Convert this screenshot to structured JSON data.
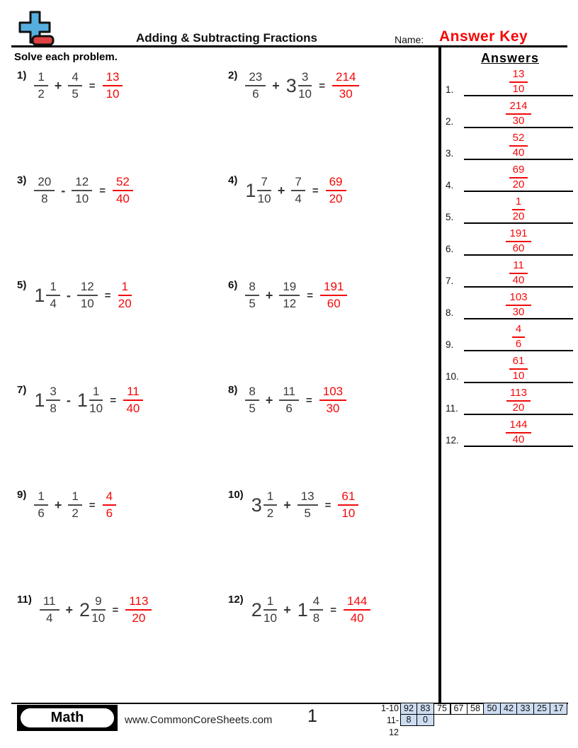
{
  "header": {
    "title": "Adding & Subtracting Fractions",
    "name_label": "Name:",
    "name_value": "Answer Key",
    "instructions": "Solve each problem.",
    "answers_heading": "Answers",
    "logo_icon": "plus-minus-icon"
  },
  "colors": {
    "answer_red": "#f40808",
    "shaded_cell_blue": "#cddcf1",
    "logo_blue": "#56aede",
    "logo_red": "#e04141"
  },
  "problems": [
    {
      "label": "1)",
      "a_whole": "",
      "a_num": "1",
      "a_den": "2",
      "op": "+",
      "b_whole": "",
      "b_num": "4",
      "b_den": "5",
      "ans_num": "13",
      "ans_den": "10"
    },
    {
      "label": "2)",
      "a_whole": "",
      "a_num": "23",
      "a_den": "6",
      "op": "+",
      "b_whole": "3",
      "b_num": "3",
      "b_den": "10",
      "ans_num": "214",
      "ans_den": "30"
    },
    {
      "label": "3)",
      "a_whole": "",
      "a_num": "20",
      "a_den": "8",
      "op": "-",
      "b_whole": "",
      "b_num": "12",
      "b_den": "10",
      "ans_num": "52",
      "ans_den": "40"
    },
    {
      "label": "4)",
      "a_whole": "1",
      "a_num": "7",
      "a_den": "10",
      "op": "+",
      "b_whole": "",
      "b_num": "7",
      "b_den": "4",
      "ans_num": "69",
      "ans_den": "20"
    },
    {
      "label": "5)",
      "a_whole": "1",
      "a_num": "1",
      "a_den": "4",
      "op": "-",
      "b_whole": "",
      "b_num": "12",
      "b_den": "10",
      "ans_num": "1",
      "ans_den": "20"
    },
    {
      "label": "6)",
      "a_whole": "",
      "a_num": "8",
      "a_den": "5",
      "op": "+",
      "b_whole": "",
      "b_num": "19",
      "b_den": "12",
      "ans_num": "191",
      "ans_den": "60"
    },
    {
      "label": "7)",
      "a_whole": "1",
      "a_num": "3",
      "a_den": "8",
      "op": "-",
      "b_whole": "1",
      "b_num": "1",
      "b_den": "10",
      "ans_num": "11",
      "ans_den": "40"
    },
    {
      "label": "8)",
      "a_whole": "",
      "a_num": "8",
      "a_den": "5",
      "op": "+",
      "b_whole": "",
      "b_num": "11",
      "b_den": "6",
      "ans_num": "103",
      "ans_den": "30"
    },
    {
      "label": "9)",
      "a_whole": "",
      "a_num": "1",
      "a_den": "6",
      "op": "+",
      "b_whole": "",
      "b_num": "1",
      "b_den": "2",
      "ans_num": "4",
      "ans_den": "6"
    },
    {
      "label": "10)",
      "a_whole": "3",
      "a_num": "1",
      "a_den": "2",
      "op": "+",
      "b_whole": "",
      "b_num": "13",
      "b_den": "5",
      "ans_num": "61",
      "ans_den": "10"
    },
    {
      "label": "11)",
      "a_whole": "",
      "a_num": "11",
      "a_den": "4",
      "op": "+",
      "b_whole": "2",
      "b_num": "9",
      "b_den": "10",
      "ans_num": "113",
      "ans_den": "20"
    },
    {
      "label": "12)",
      "a_whole": "2",
      "a_num": "1",
      "a_den": "10",
      "op": "+",
      "b_whole": "1",
      "b_num": "4",
      "b_den": "8",
      "ans_num": "144",
      "ans_den": "40"
    }
  ],
  "answers": [
    {
      "label": "1.",
      "num": "13",
      "den": "10"
    },
    {
      "label": "2.",
      "num": "214",
      "den": "30"
    },
    {
      "label": "3.",
      "num": "52",
      "den": "40"
    },
    {
      "label": "4.",
      "num": "69",
      "den": "20"
    },
    {
      "label": "5.",
      "num": "1",
      "den": "20"
    },
    {
      "label": "6.",
      "num": "191",
      "den": "60"
    },
    {
      "label": "7.",
      "num": "11",
      "den": "40"
    },
    {
      "label": "8.",
      "num": "103",
      "den": "30"
    },
    {
      "label": "9.",
      "num": "4",
      "den": "6"
    },
    {
      "label": "10.",
      "num": "61",
      "den": "10"
    },
    {
      "label": "11.",
      "num": "113",
      "den": "20"
    },
    {
      "label": "12.",
      "num": "144",
      "den": "40"
    }
  ],
  "footer": {
    "brand": "Math",
    "website": "www.CommonCoreSheets.com",
    "page_number": "1",
    "score_table": {
      "rows": [
        {
          "label": "1-10",
          "cells": [
            {
              "v": "92",
              "shaded": true
            },
            {
              "v": "83",
              "shaded": true
            },
            {
              "v": "75",
              "shaded": false
            },
            {
              "v": "67",
              "shaded": false
            },
            {
              "v": "58",
              "shaded": false
            },
            {
              "v": "50",
              "shaded": true
            },
            {
              "v": "42",
              "shaded": true
            },
            {
              "v": "33",
              "shaded": true
            },
            {
              "v": "25",
              "shaded": true
            },
            {
              "v": "17",
              "shaded": true
            }
          ]
        },
        {
          "label": "11-12",
          "cells": [
            {
              "v": "8",
              "shaded": true
            },
            {
              "v": "0",
              "shaded": true
            }
          ]
        }
      ]
    }
  }
}
